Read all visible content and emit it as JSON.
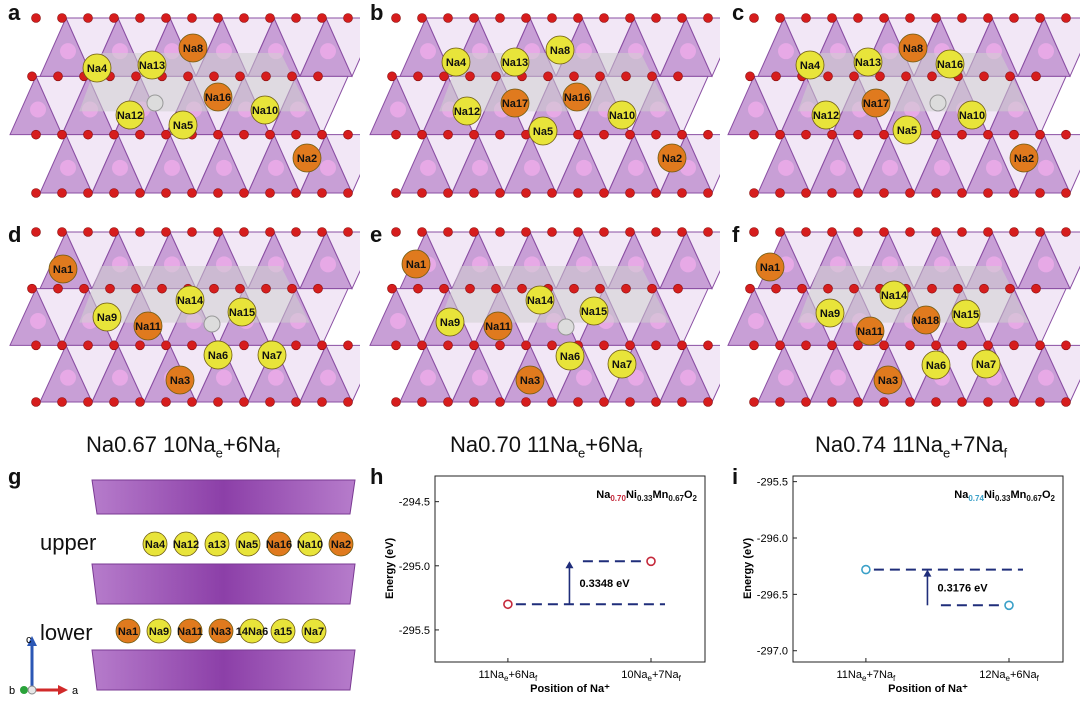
{
  "colors": {
    "polyhedron": "#b57fc8",
    "polyhedron_dark": "#8a4fa3",
    "oxygen": "#d61d1d",
    "na_edge": "#e8e43a",
    "na_face": "#e07a1e",
    "vacancy": "#dcdcdc",
    "transition_metal": "#e7a9e6",
    "dashed_line": "#1f2d7a",
    "point_h": "#c4283a",
    "point_i": "#3aa0c8"
  },
  "panels": {
    "a": {
      "label": "a",
      "ions": [
        {
          "name": "Na4",
          "type": "e"
        },
        {
          "name": "Na13",
          "type": "e"
        },
        {
          "name": "Na8",
          "type": "f"
        },
        {
          "name": "Na12",
          "type": "e"
        },
        {
          "name": "Na16",
          "type": "f"
        },
        {
          "name": "Na5",
          "type": "e"
        },
        {
          "name": "Na10",
          "type": "e"
        },
        {
          "name": "Na2",
          "type": "f"
        }
      ]
    },
    "b": {
      "label": "b",
      "ions": [
        {
          "name": "Na4",
          "type": "e"
        },
        {
          "name": "Na13",
          "type": "e"
        },
        {
          "name": "Na8",
          "type": "e"
        },
        {
          "name": "Na12",
          "type": "e"
        },
        {
          "name": "Na17",
          "type": "f"
        },
        {
          "name": "Na16",
          "type": "f"
        },
        {
          "name": "Na5",
          "type": "e"
        },
        {
          "name": "Na10",
          "type": "e"
        },
        {
          "name": "Na2",
          "type": "f"
        }
      ]
    },
    "c": {
      "label": "c",
      "ions": [
        {
          "name": "Na4",
          "type": "e"
        },
        {
          "name": "Na13",
          "type": "e"
        },
        {
          "name": "Na8",
          "type": "f"
        },
        {
          "name": "Na16",
          "type": "e"
        },
        {
          "name": "Na12",
          "type": "e"
        },
        {
          "name": "Na17",
          "type": "f"
        },
        {
          "name": "Na5",
          "type": "e"
        },
        {
          "name": "Na10",
          "type": "e"
        },
        {
          "name": "Na2",
          "type": "f"
        }
      ]
    },
    "d": {
      "label": "d",
      "ions": [
        {
          "name": "Na1",
          "type": "f"
        },
        {
          "name": "Na14",
          "type": "e"
        },
        {
          "name": "Na9",
          "type": "e"
        },
        {
          "name": "Na15",
          "type": "e"
        },
        {
          "name": "Na11",
          "type": "f"
        },
        {
          "name": "Na6",
          "type": "e"
        },
        {
          "name": "Na7",
          "type": "e"
        },
        {
          "name": "Na3",
          "type": "f"
        }
      ]
    },
    "e": {
      "label": "e",
      "ions": [
        {
          "name": "Na1",
          "type": "f"
        },
        {
          "name": "Na14",
          "type": "e"
        },
        {
          "name": "Na9",
          "type": "e"
        },
        {
          "name": "Na15",
          "type": "e"
        },
        {
          "name": "Na11",
          "type": "f"
        },
        {
          "name": "Na6",
          "type": "e"
        },
        {
          "name": "Na7",
          "type": "e"
        },
        {
          "name": "Na3",
          "type": "f"
        }
      ]
    },
    "f": {
      "label": "f",
      "ions": [
        {
          "name": "Na1",
          "type": "f"
        },
        {
          "name": "Na14",
          "type": "e"
        },
        {
          "name": "Na9",
          "type": "e"
        },
        {
          "name": "Na18",
          "type": "f"
        },
        {
          "name": "Na15",
          "type": "e"
        },
        {
          "name": "Na11",
          "type": "f"
        },
        {
          "name": "Na6",
          "type": "e"
        },
        {
          "name": "Na7",
          "type": "e"
        },
        {
          "name": "Na3",
          "type": "f"
        }
      ]
    },
    "g": {
      "label": "g",
      "upper_word": "upper",
      "lower_word": "lower",
      "upper_row": [
        {
          "name": "Na4",
          "type": "e"
        },
        {
          "name": "Na12",
          "type": "e"
        },
        {
          "name": "a13",
          "type": "e"
        },
        {
          "name": "Na5",
          "type": "e"
        },
        {
          "name": "Na16",
          "type": "f"
        },
        {
          "name": "Na10",
          "type": "e"
        },
        {
          "name": "Na2",
          "type": "f"
        }
      ],
      "lower_row": [
        {
          "name": "Na1",
          "type": "f"
        },
        {
          "name": "Na9",
          "type": "e"
        },
        {
          "name": "Na11",
          "type": "f"
        },
        {
          "name": "Na3",
          "type": "f"
        },
        {
          "name": "14Na6",
          "type": "e"
        },
        {
          "name": "a15",
          "type": "e"
        },
        {
          "name": "Na7",
          "type": "e"
        }
      ],
      "axes": {
        "c": "c",
        "b": "b",
        "a": "a"
      }
    },
    "h": {
      "label": "h"
    },
    "i": {
      "label": "i"
    }
  },
  "captions": {
    "d": {
      "prefix": "Na0.67 10Na",
      "sub1": "e",
      "mid": "+6Na",
      "sub2": "f"
    },
    "e": {
      "prefix": "Na0.70 11Na",
      "sub1": "e",
      "mid": "+6Na",
      "sub2": "f"
    },
    "f": {
      "prefix": "Na0.74 11Na",
      "sub1": "e",
      "mid": "+7Na",
      "sub2": "f"
    }
  },
  "chart_data": [
    {
      "panel": "h",
      "type": "scatter",
      "title_parts": [
        "Na",
        "0.70",
        "Ni",
        "0.33",
        "Mn",
        "0.67",
        "O",
        "2"
      ],
      "xlabel": "Position of Na⁺",
      "ylabel": "Energy (eV)",
      "categories": [
        "11Naₑ+6Na_f",
        "10Naₑ+7Na_f"
      ],
      "category_labels": [
        {
          "a": "11Na",
          "s1": "e",
          "b": "+6Na",
          "s2": "f"
        },
        {
          "a": "10Na",
          "s1": "e",
          "b": "+7Na",
          "s2": "f"
        }
      ],
      "values": [
        -295.3,
        -294.965
      ],
      "ylim": [
        -295.75,
        -294.3
      ],
      "yticks": [
        -294.5,
        -295.0,
        -295.5
      ],
      "ytick_labels": [
        "-294.5",
        "-295.0",
        "-295.5"
      ],
      "annotation": "0.3348 eV"
    },
    {
      "panel": "i",
      "type": "scatter",
      "title_parts": [
        "Na",
        "0.74",
        "Ni",
        "0.33",
        "Mn",
        "0.67",
        "O",
        "2"
      ],
      "xlabel": "Position of Na⁺",
      "ylabel": "Energy (eV)",
      "categories": [
        "11Naₑ+7Na_f",
        "12Naₑ+6Na_f"
      ],
      "category_labels": [
        {
          "a": "11Na",
          "s1": "e",
          "b": "+7Na",
          "s2": "f"
        },
        {
          "a": "12Na",
          "s1": "e",
          "b": "+6Na",
          "s2": "f"
        }
      ],
      "values": [
        -296.28,
        -296.597
      ],
      "ylim": [
        -297.1,
        -295.45
      ],
      "yticks": [
        -295.5,
        -296.0,
        -296.5,
        -297.0
      ],
      "ytick_labels": [
        "-295.5",
        "-296.0",
        "-296.5",
        "-297.0"
      ],
      "annotation": "0.3176 eV"
    }
  ]
}
